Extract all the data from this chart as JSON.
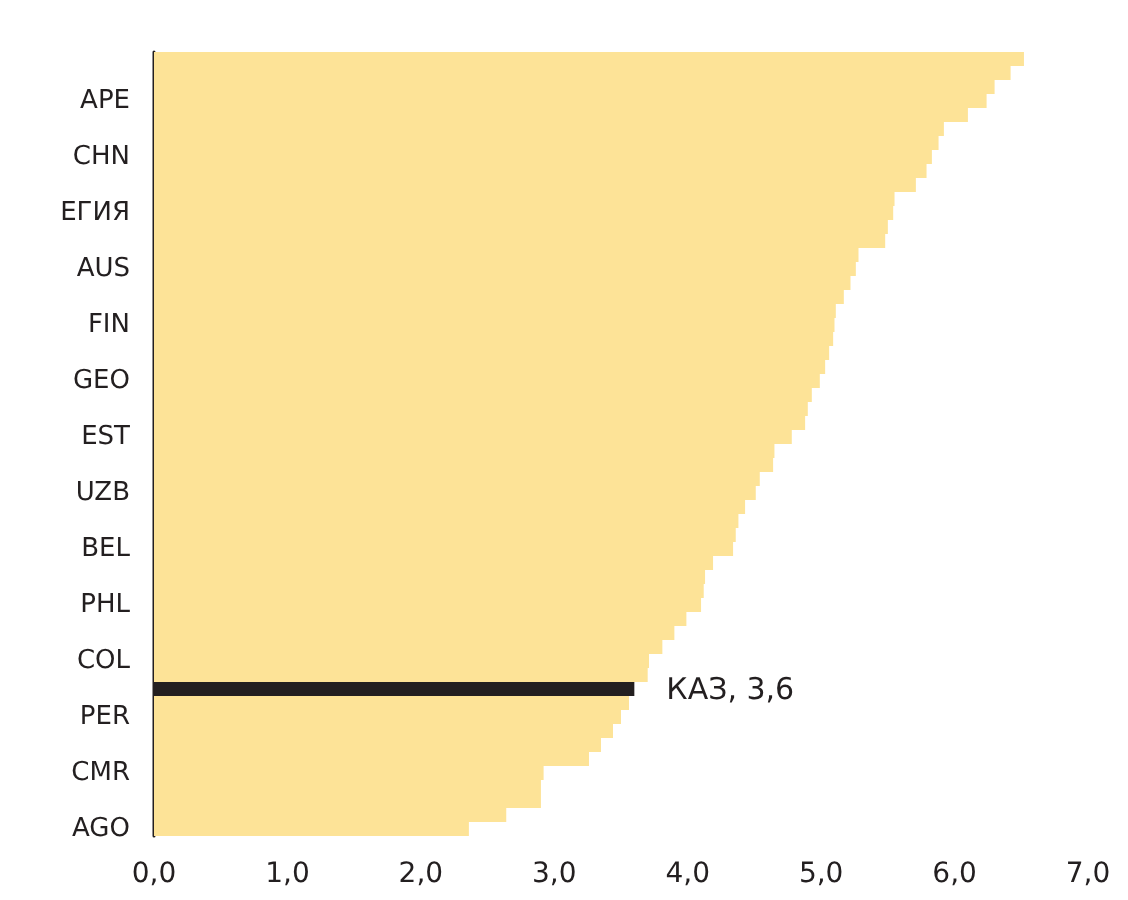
{
  "chart_data": {
    "type": "bar",
    "orientation": "horizontal",
    "categories": [
      null,
      null,
      null,
      "APE",
      null,
      null,
      null,
      "CHN",
      null,
      null,
      null,
      "ЕГИЯ",
      null,
      null,
      null,
      "AUS",
      null,
      null,
      null,
      "FIN",
      null,
      null,
      null,
      "GEO",
      null,
      null,
      null,
      "EST",
      null,
      null,
      null,
      "UZB",
      null,
      null,
      null,
      "BEL",
      null,
      null,
      null,
      "PHL",
      null,
      null,
      null,
      "COL",
      null,
      null,
      null,
      "PER",
      null,
      null,
      null,
      "CMR",
      null,
      null,
      null,
      "AGO"
    ],
    "values": [
      6.52,
      6.42,
      6.3,
      6.24,
      6.1,
      5.92,
      5.88,
      5.83,
      5.79,
      5.71,
      5.55,
      5.54,
      5.5,
      5.48,
      5.28,
      5.26,
      5.22,
      5.17,
      5.11,
      5.1,
      5.09,
      5.06,
      5.03,
      4.99,
      4.93,
      4.9,
      4.88,
      4.78,
      4.65,
      4.64,
      4.54,
      4.51,
      4.43,
      4.38,
      4.36,
      4.34,
      4.19,
      4.13,
      4.12,
      4.1,
      3.99,
      3.9,
      3.81,
      3.71,
      3.7,
      3.6,
      3.56,
      3.5,
      3.44,
      3.35,
      3.26,
      2.92,
      2.9,
      2.9,
      2.64,
      2.36
    ],
    "colors": [
      "#fde397",
      "#fde397",
      "#fde397",
      "#fde397",
      "#fde397",
      "#fde397",
      "#fde397",
      "#fde397",
      "#fde397",
      "#fde397",
      "#fde397",
      "#fde397",
      "#fde397",
      "#fde397",
      "#fde397",
      "#fde397",
      "#fde397",
      "#fde397",
      "#fde397",
      "#fde397",
      "#fde397",
      "#fde397",
      "#fde397",
      "#fde397",
      "#fde397",
      "#fde397",
      "#fde397",
      "#fde397",
      "#fde397",
      "#fde397",
      "#fde397",
      "#fde397",
      "#fde397",
      "#fde397",
      "#fde397",
      "#fde397",
      "#fde397",
      "#fde397",
      "#fde397",
      "#fde397",
      "#fde397",
      "#fde397",
      "#fde397",
      "#fde397",
      "#fde397",
      "#231f20",
      "#fde397",
      "#fde397",
      "#fde397",
      "#fde397",
      "#fde397",
      "#fde397",
      "#fde397",
      "#fde397",
      "#fde397",
      "#fde397"
    ],
    "xlim": [
      0,
      7
    ],
    "xticks": [
      {
        "value": 0,
        "label": "0,0"
      },
      {
        "value": 1,
        "label": "1,0"
      },
      {
        "value": 2,
        "label": "2,0"
      },
      {
        "value": 3,
        "label": "3,0"
      },
      {
        "value": 4,
        "label": "4,0"
      },
      {
        "value": 5,
        "label": "5,0"
      },
      {
        "value": 6,
        "label": "6,0"
      },
      {
        "value": 7,
        "label": "7,0"
      }
    ],
    "annotations": [
      {
        "text": "КАЗ, 3,6",
        "x": 3.6
      }
    ],
    "grid": false
  }
}
